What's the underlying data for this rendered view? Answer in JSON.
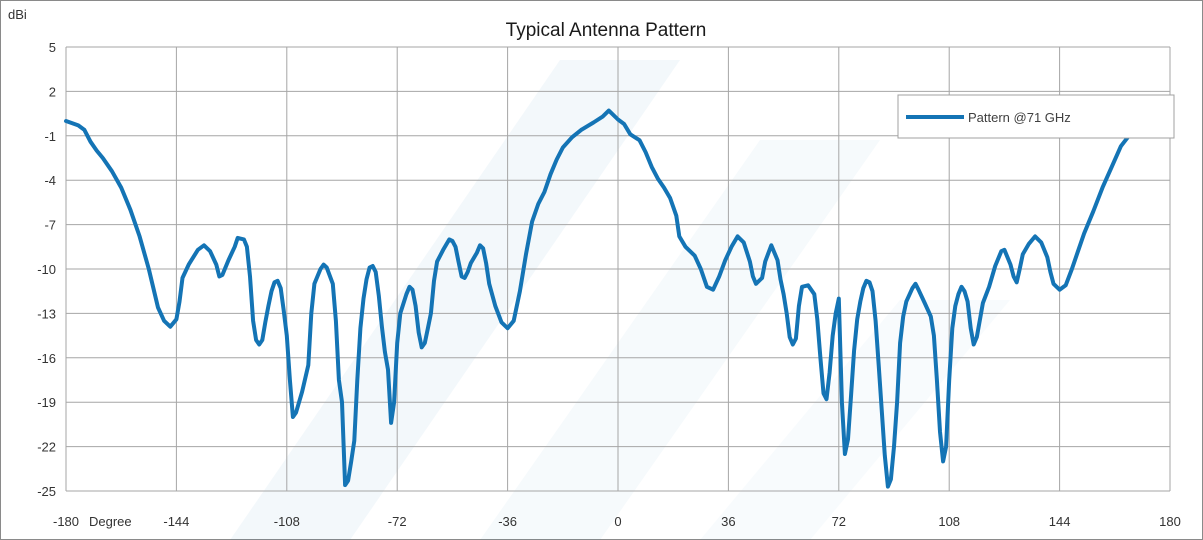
{
  "chart_data": {
    "type": "line",
    "title": "Typical Antenna Pattern",
    "ylabel": "dBi",
    "xlabel": "Degree",
    "xlim": [
      -180,
      180
    ],
    "ylim": [
      -25,
      5
    ],
    "x_ticks": [
      -180,
      -144,
      -108,
      -72,
      -36,
      0,
      36,
      72,
      108,
      144,
      180
    ],
    "y_ticks": [
      5,
      2,
      -1,
      -4,
      -7,
      -10,
      -13,
      -16,
      -19,
      -22,
      -25
    ],
    "grid": true,
    "legend_position": "top-right",
    "series": [
      {
        "name": "Pattern @71 GHz",
        "color": "#1474B5",
        "points": [
          [
            -180,
            0
          ],
          [
            -176,
            -0.3
          ],
          [
            -174,
            -0.6
          ],
          [
            -172,
            -1.4
          ],
          [
            -170,
            -2.0
          ],
          [
            -168,
            -2.5
          ],
          [
            -165,
            -3.4
          ],
          [
            -162,
            -4.5
          ],
          [
            -159,
            -6.0
          ],
          [
            -156,
            -7.8
          ],
          [
            -153,
            -10.0
          ],
          [
            -150,
            -12.6
          ],
          [
            -148,
            -13.5
          ],
          [
            -146,
            -13.9
          ],
          [
            -144,
            -13.4
          ],
          [
            -143,
            -12.2
          ],
          [
            -142,
            -10.6
          ],
          [
            -140,
            -9.7
          ],
          [
            -137,
            -8.7
          ],
          [
            -135,
            -8.4
          ],
          [
            -133,
            -8.8
          ],
          [
            -131,
            -9.7
          ],
          [
            -130,
            -10.5
          ],
          [
            -129,
            -10.4
          ],
          [
            -127,
            -9.4
          ],
          [
            -125,
            -8.5
          ],
          [
            -124,
            -7.9
          ],
          [
            -122,
            -8.0
          ],
          [
            -121,
            -8.5
          ],
          [
            -120,
            -10.5
          ],
          [
            -119,
            -13.5
          ],
          [
            -118,
            -14.8
          ],
          [
            -117,
            -15.1
          ],
          [
            -116,
            -14.8
          ],
          [
            -115,
            -13.6
          ],
          [
            -114,
            -12.5
          ],
          [
            -113,
            -11.5
          ],
          [
            -112,
            -10.9
          ],
          [
            -111,
            -10.8
          ],
          [
            -110,
            -11.3
          ],
          [
            -109,
            -12.8
          ],
          [
            -108,
            -14.5
          ],
          [
            -107,
            -17.5
          ],
          [
            -106,
            -20.0
          ],
          [
            -105,
            -19.7
          ],
          [
            -103,
            -18.3
          ],
          [
            -101,
            -16.5
          ],
          [
            -100,
            -13.0
          ],
          [
            -99,
            -11.0
          ],
          [
            -97,
            -10.0
          ],
          [
            -96,
            -9.7
          ],
          [
            -95,
            -9.9
          ],
          [
            -93,
            -11.0
          ],
          [
            -92,
            -13.5
          ],
          [
            -91,
            -17.5
          ],
          [
            -90,
            -19.0
          ],
          [
            -89,
            -24.6
          ],
          [
            -88,
            -24.3
          ],
          [
            -87,
            -23.0
          ],
          [
            -86,
            -21.6
          ],
          [
            -85,
            -17.5
          ],
          [
            -84,
            -14.0
          ],
          [
            -83,
            -12.0
          ],
          [
            -82,
            -10.7
          ],
          [
            -81,
            -9.9
          ],
          [
            -80,
            -9.8
          ],
          [
            -79,
            -10.2
          ],
          [
            -78,
            -11.8
          ],
          [
            -77,
            -13.9
          ],
          [
            -76,
            -15.6
          ],
          [
            -75,
            -16.8
          ],
          [
            -74,
            -20.4
          ],
          [
            -73,
            -19.0
          ],
          [
            -72,
            -15.0
          ],
          [
            -71,
            -13.0
          ],
          [
            -69,
            -11.7
          ],
          [
            -68,
            -11.2
          ],
          [
            -67,
            -11.4
          ],
          [
            -66,
            -12.5
          ],
          [
            -65,
            -14.3
          ],
          [
            -64,
            -15.3
          ],
          [
            -63,
            -15.0
          ],
          [
            -62,
            -14.0
          ],
          [
            -61,
            -13.0
          ],
          [
            -60,
            -10.8
          ],
          [
            -59,
            -9.5
          ],
          [
            -57,
            -8.7
          ],
          [
            -55,
            -8.0
          ],
          [
            -54,
            -8.1
          ],
          [
            -53,
            -8.5
          ],
          [
            -52,
            -9.5
          ],
          [
            -51,
            -10.5
          ],
          [
            -50,
            -10.6
          ],
          [
            -49,
            -10.2
          ],
          [
            -48,
            -9.6
          ],
          [
            -46,
            -8.9
          ],
          [
            -45,
            -8.4
          ],
          [
            -44,
            -8.6
          ],
          [
            -43,
            -9.6
          ],
          [
            -42,
            -11.0
          ],
          [
            -40,
            -12.5
          ],
          [
            -38,
            -13.6
          ],
          [
            -36,
            -14.0
          ],
          [
            -34,
            -13.5
          ],
          [
            -32,
            -11.5
          ],
          [
            -30,
            -9.0
          ],
          [
            -28,
            -6.8
          ],
          [
            -26,
            -5.6
          ],
          [
            -24,
            -4.8
          ],
          [
            -22,
            -3.6
          ],
          [
            -20,
            -2.6
          ],
          [
            -18,
            -1.8
          ],
          [
            -15,
            -1.1
          ],
          [
            -12,
            -0.6
          ],
          [
            -8,
            -0.1
          ],
          [
            -5,
            0.3
          ],
          [
            -3,
            0.7
          ],
          [
            0,
            0.1
          ],
          [
            2,
            -0.2
          ],
          [
            4,
            -0.9
          ],
          [
            7,
            -1.3
          ],
          [
            9,
            -2.1
          ],
          [
            11,
            -3.1
          ],
          [
            13,
            -3.9
          ],
          [
            15,
            -4.5
          ],
          [
            17,
            -5.2
          ],
          [
            19,
            -6.4
          ],
          [
            20,
            -7.8
          ],
          [
            22,
            -8.5
          ],
          [
            25,
            -9.1
          ],
          [
            27,
            -10.0
          ],
          [
            29,
            -11.2
          ],
          [
            31,
            -11.4
          ],
          [
            33,
            -10.5
          ],
          [
            35,
            -9.4
          ],
          [
            37,
            -8.5
          ],
          [
            39,
            -7.8
          ],
          [
            41,
            -8.2
          ],
          [
            43,
            -9.5
          ],
          [
            44,
            -10.5
          ],
          [
            45,
            -11.0
          ],
          [
            47,
            -10.6
          ],
          [
            48,
            -9.5
          ],
          [
            50,
            -8.4
          ],
          [
            52,
            -9.4
          ],
          [
            53,
            -10.7
          ],
          [
            54,
            -11.7
          ],
          [
            55,
            -13.0
          ],
          [
            56,
            -14.6
          ],
          [
            57,
            -15.1
          ],
          [
            58,
            -14.7
          ],
          [
            59,
            -12.5
          ],
          [
            60,
            -11.2
          ],
          [
            62,
            -11.1
          ],
          [
            64,
            -11.7
          ],
          [
            65,
            -13.4
          ],
          [
            66,
            -16.0
          ],
          [
            67,
            -18.4
          ],
          [
            68,
            -18.8
          ],
          [
            69,
            -17.0
          ],
          [
            70,
            -14.5
          ],
          [
            71,
            -13.0
          ],
          [
            72,
            -12.0
          ],
          [
            73,
            -19.0
          ],
          [
            74,
            -22.5
          ],
          [
            75,
            -21.5
          ],
          [
            76,
            -18.5
          ],
          [
            77,
            -15.5
          ],
          [
            78,
            -13.4
          ],
          [
            79,
            -12.2
          ],
          [
            80,
            -11.3
          ],
          [
            81,
            -10.8
          ],
          [
            82,
            -10.9
          ],
          [
            83,
            -11.5
          ],
          [
            84,
            -13.5
          ],
          [
            85,
            -16.5
          ],
          [
            86,
            -19.5
          ],
          [
            87,
            -22.6
          ],
          [
            88,
            -24.7
          ],
          [
            89,
            -24.2
          ],
          [
            90,
            -22.0
          ],
          [
            91,
            -19.0
          ],
          [
            92,
            -15.0
          ],
          [
            93,
            -13.2
          ],
          [
            94,
            -12.2
          ],
          [
            96,
            -11.3
          ],
          [
            97,
            -11.0
          ],
          [
            98,
            -11.4
          ],
          [
            100,
            -12.3
          ],
          [
            102,
            -13.2
          ],
          [
            103,
            -14.5
          ],
          [
            104,
            -17.5
          ],
          [
            105,
            -21.0
          ],
          [
            106,
            -23.0
          ],
          [
            107,
            -22.0
          ],
          [
            108,
            -17.5
          ],
          [
            109,
            -14.0
          ],
          [
            110,
            -12.5
          ],
          [
            111,
            -11.7
          ],
          [
            112,
            -11.2
          ],
          [
            113,
            -11.5
          ],
          [
            114,
            -12.2
          ],
          [
            115,
            -14.0
          ],
          [
            116,
            -15.1
          ],
          [
            117,
            -14.6
          ],
          [
            119,
            -12.3
          ],
          [
            121,
            -11.2
          ],
          [
            123,
            -9.8
          ],
          [
            125,
            -8.8
          ],
          [
            126,
            -8.7
          ],
          [
            128,
            -9.7
          ],
          [
            129,
            -10.5
          ],
          [
            130,
            -10.9
          ],
          [
            131,
            -10.0
          ],
          [
            132,
            -9.0
          ],
          [
            134,
            -8.3
          ],
          [
            136,
            -7.8
          ],
          [
            138,
            -8.2
          ],
          [
            140,
            -9.2
          ],
          [
            141,
            -10.2
          ],
          [
            142,
            -11.0
          ],
          [
            144,
            -11.4
          ],
          [
            146,
            -11.1
          ],
          [
            148,
            -10.0
          ],
          [
            150,
            -8.8
          ],
          [
            152,
            -7.6
          ],
          [
            155,
            -6.1
          ],
          [
            158,
            -4.5
          ],
          [
            161,
            -3.1
          ],
          [
            164,
            -1.7
          ],
          [
            167,
            -0.9
          ],
          [
            170,
            -0.5
          ],
          [
            173,
            -0.1
          ],
          [
            176,
            0.2
          ],
          [
            180,
            0.1
          ]
        ]
      }
    ]
  }
}
